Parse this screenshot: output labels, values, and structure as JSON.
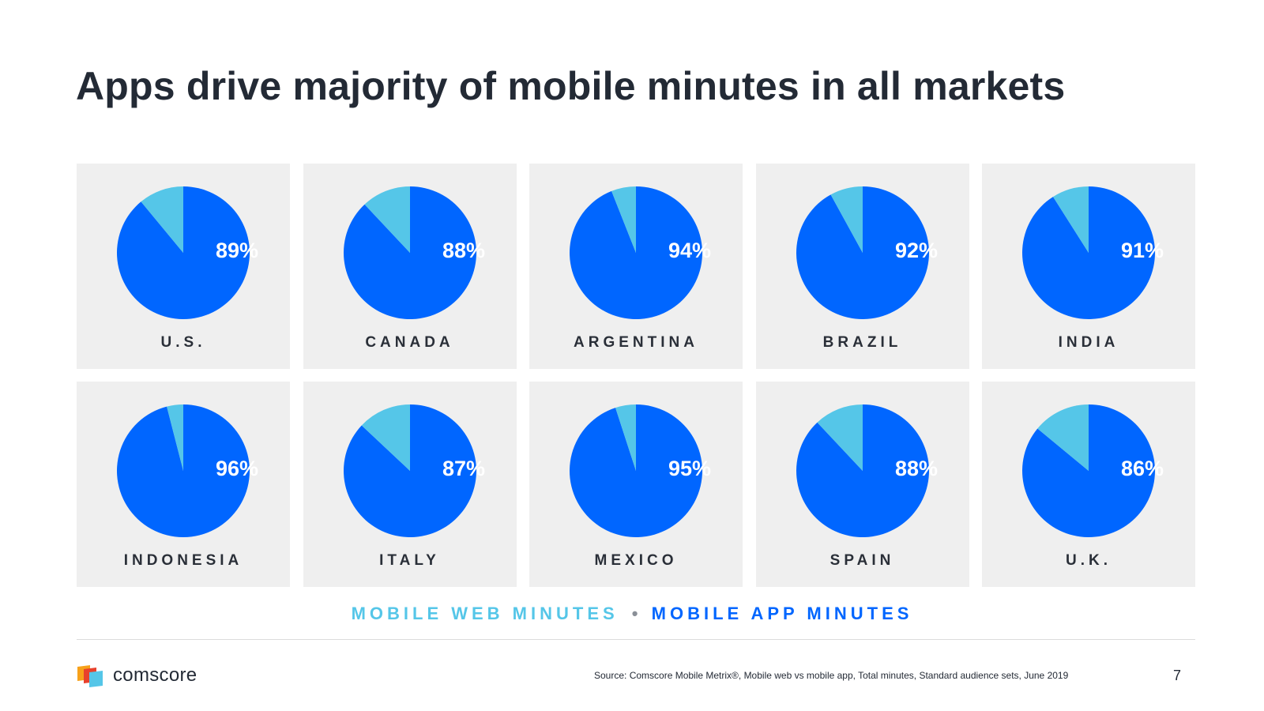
{
  "title": "Apps drive majority of mobile minutes in all markets",
  "legend": {
    "web_label": "MOBILE WEB MINUTES",
    "separator": "•",
    "app_label": "MOBILE APP MINUTES"
  },
  "colors": {
    "mobile_web": "#55c6e8",
    "mobile_app": "#0066ff",
    "card_background": "#efefef",
    "title_text": "#232a35"
  },
  "chart_data": {
    "type": "pie",
    "series_labels": [
      "MOBILE WEB MINUTES",
      "MOBILE APP MINUTES"
    ],
    "markets": [
      {
        "country": "U.S.",
        "app_percent": 89,
        "web_percent": 11,
        "label": "89%"
      },
      {
        "country": "CANADA",
        "app_percent": 88,
        "web_percent": 12,
        "label": "88%"
      },
      {
        "country": "ARGENTINA",
        "app_percent": 94,
        "web_percent": 6,
        "label": "94%"
      },
      {
        "country": "BRAZIL",
        "app_percent": 92,
        "web_percent": 8,
        "label": "92%"
      },
      {
        "country": "INDIA",
        "app_percent": 91,
        "web_percent": 9,
        "label": "91%"
      },
      {
        "country": "INDONESIA",
        "app_percent": 96,
        "web_percent": 4,
        "label": "96%"
      },
      {
        "country": "ITALY",
        "app_percent": 87,
        "web_percent": 13,
        "label": "87%"
      },
      {
        "country": "MEXICO",
        "app_percent": 95,
        "web_percent": 5,
        "label": "95%"
      },
      {
        "country": "SPAIN",
        "app_percent": 88,
        "web_percent": 12,
        "label": "88%"
      },
      {
        "country": "U.K.",
        "app_percent": 86,
        "web_percent": 14,
        "label": "86%"
      }
    ]
  },
  "footer": {
    "logo_text": "comscore",
    "source": "Source: Comscore Mobile Metrix®, Mobile web vs mobile app, Total minutes, Standard audience sets, June 2019",
    "page_number": "7"
  }
}
